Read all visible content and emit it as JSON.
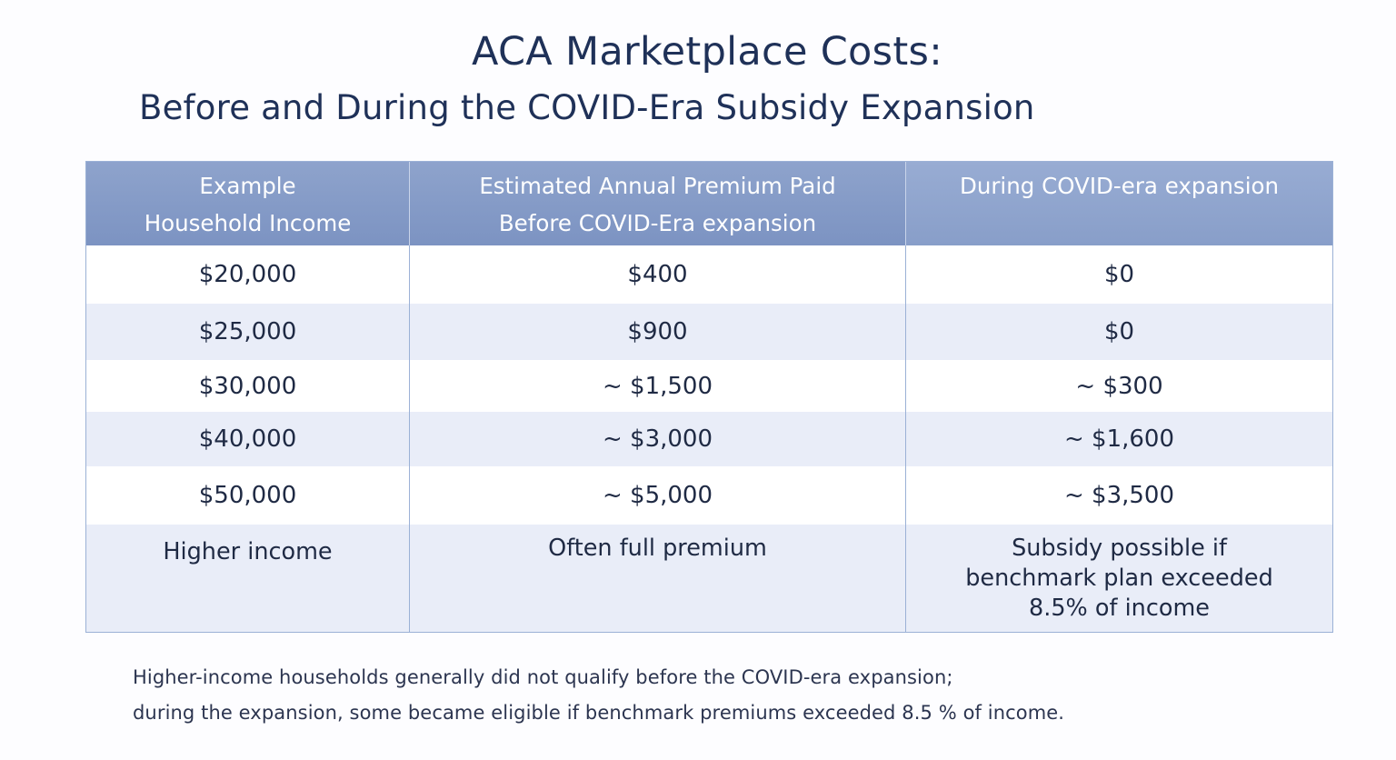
{
  "title": "ACA Marketplace Costs:",
  "subtitle": "Before and During the COVID-Era Subsidy Expansion",
  "table": {
    "headers": [
      "Example\nHousehold Income",
      "Estimated Annual Premium Paid\nBefore COVID-Era expansion",
      "During COVID-era expansion"
    ],
    "rows": [
      [
        "$20,000",
        "$400",
        "$0"
      ],
      [
        "$25,000",
        "$900",
        "$0"
      ],
      [
        "$30,000",
        "~ $1,500",
        "~ $300"
      ],
      [
        "$40,000",
        "~ $3,000",
        "~ $1,600"
      ],
      [
        "$50,000",
        "~ $5,000",
        "~ $3,500"
      ],
      [
        "Higher income",
        "Often full premium",
        "Subsidy possible if\nbenchmark plan exceeded\n8.5% of income"
      ]
    ]
  },
  "footnote": {
    "line1": "Higher-income households generally did not qualify before the COVID-era expansion;",
    "line2": "during the expansion, some became eligible if benchmark premiums exceeded 8.5 % of income."
  }
}
